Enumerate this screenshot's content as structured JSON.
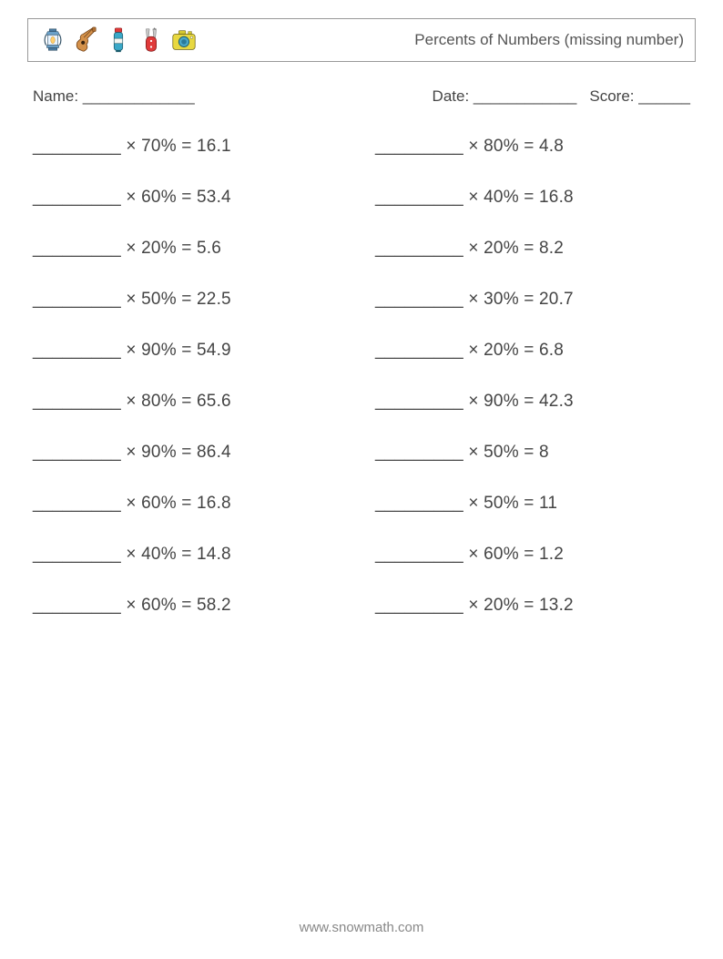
{
  "header": {
    "title": "Percents of Numbers (missing number)",
    "icons": [
      "lantern",
      "guitar",
      "thermos",
      "swiss-knife",
      "camera"
    ]
  },
  "info": {
    "name_label": "Name:",
    "name_blank": "_____________",
    "date_label": "Date:",
    "date_blank": "____________",
    "score_label": "Score:",
    "score_blank": "______"
  },
  "blank": "_________",
  "multiply": "×",
  "equals": "=",
  "problems": [
    {
      "percent": "70%",
      "result": "16.1"
    },
    {
      "percent": "80%",
      "result": "4.8"
    },
    {
      "percent": "60%",
      "result": "53.4"
    },
    {
      "percent": "40%",
      "result": "16.8"
    },
    {
      "percent": "20%",
      "result": "5.6"
    },
    {
      "percent": "20%",
      "result": "8.2"
    },
    {
      "percent": "50%",
      "result": "22.5"
    },
    {
      "percent": "30%",
      "result": "20.7"
    },
    {
      "percent": "90%",
      "result": "54.9"
    },
    {
      "percent": "20%",
      "result": "6.8"
    },
    {
      "percent": "80%",
      "result": "65.6"
    },
    {
      "percent": "90%",
      "result": "42.3"
    },
    {
      "percent": "90%",
      "result": "86.4"
    },
    {
      "percent": "50%",
      "result": "8"
    },
    {
      "percent": "60%",
      "result": "16.8"
    },
    {
      "percent": "50%",
      "result": "11"
    },
    {
      "percent": "40%",
      "result": "14.8"
    },
    {
      "percent": "60%",
      "result": "1.2"
    },
    {
      "percent": "60%",
      "result": "58.2"
    },
    {
      "percent": "20%",
      "result": "13.2"
    }
  ],
  "footer": "www.snowmath.com",
  "colors": {
    "text": "#444444",
    "border": "#999999",
    "footer": "#888888",
    "background": "#ffffff"
  }
}
